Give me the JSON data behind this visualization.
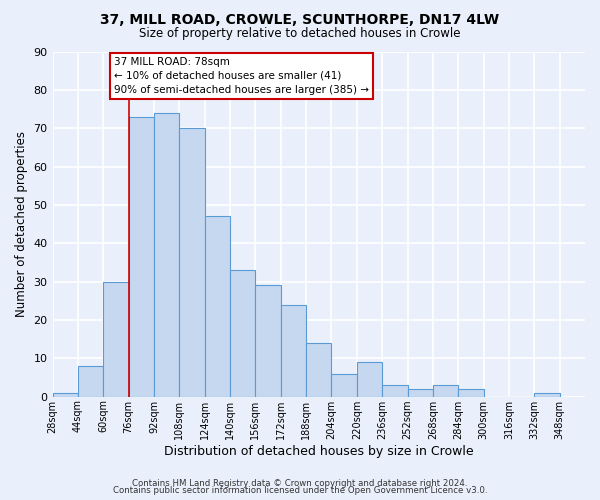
{
  "title1": "37, MILL ROAD, CROWLE, SCUNTHORPE, DN17 4LW",
  "title2": "Size of property relative to detached houses in Crowle",
  "xlabel": "Distribution of detached houses by size in Crowle",
  "ylabel": "Number of detached properties",
  "bin_labels": [
    "28sqm",
    "44sqm",
    "60sqm",
    "76sqm",
    "92sqm",
    "108sqm",
    "124sqm",
    "140sqm",
    "156sqm",
    "172sqm",
    "188sqm",
    "204sqm",
    "220sqm",
    "236sqm",
    "252sqm",
    "268sqm",
    "284sqm",
    "300sqm",
    "316sqm",
    "332sqm",
    "348sqm"
  ],
  "bin_edges": [
    28,
    44,
    60,
    76,
    92,
    108,
    124,
    140,
    156,
    172,
    188,
    204,
    220,
    236,
    252,
    268,
    284,
    300,
    316,
    332,
    348
  ],
  "counts": [
    1,
    8,
    30,
    73,
    74,
    70,
    47,
    33,
    29,
    24,
    14,
    6,
    9,
    3,
    2,
    3,
    2,
    0,
    0,
    1
  ],
  "bar_color": "#c5d8f0",
  "bar_edge_color": "#5b9bd5",
  "background_color": "#eaf0fb",
  "grid_color": "#ffffff",
  "ylim": [
    0,
    90
  ],
  "yticks": [
    0,
    10,
    20,
    30,
    40,
    50,
    60,
    70,
    80,
    90
  ],
  "annotation_line1": "37 MILL ROAD: 78sqm",
  "annotation_line2": "← 10% of detached houses are smaller (41)",
  "annotation_line3": "90% of semi-detached houses are larger (385) →",
  "property_line_x": 76,
  "footer1": "Contains HM Land Registry data © Crown copyright and database right 2024.",
  "footer2": "Contains public sector information licensed under the Open Government Licence v3.0."
}
